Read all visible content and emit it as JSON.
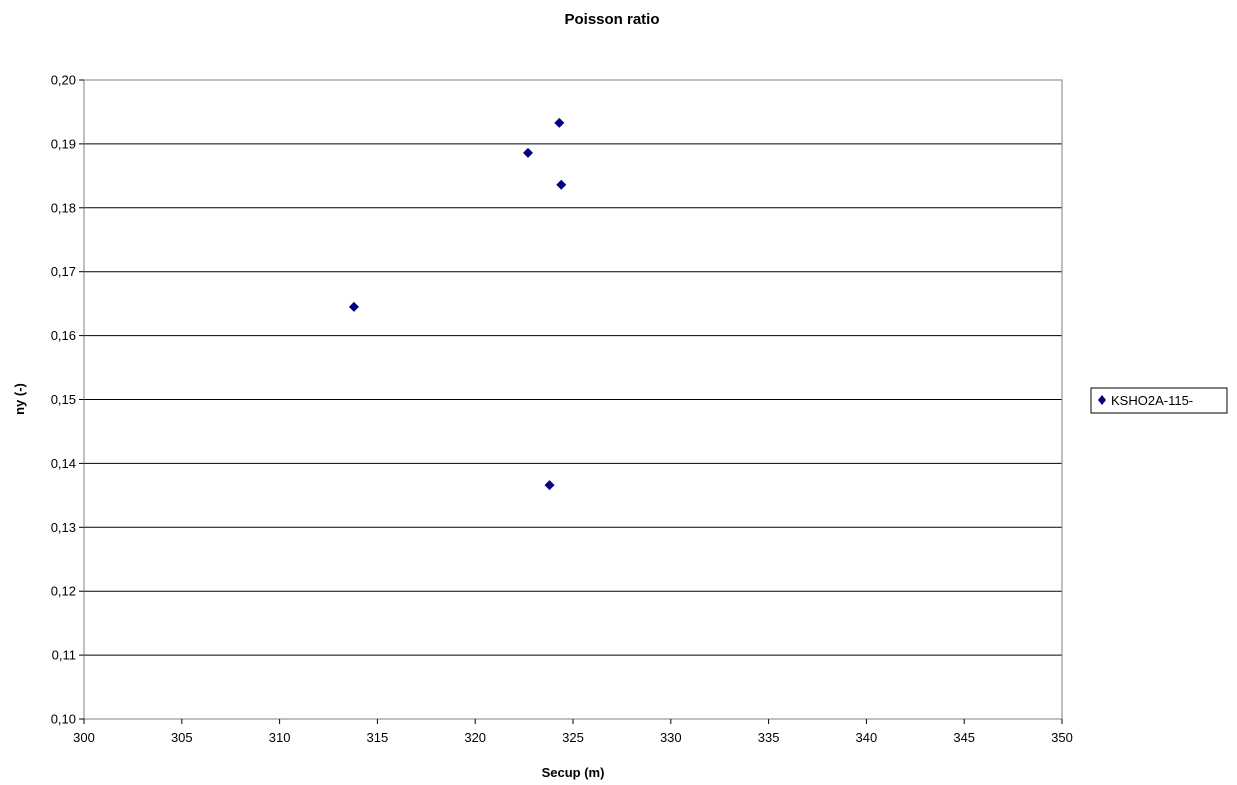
{
  "chart_data": {
    "type": "scatter",
    "title": "Poisson ratio",
    "xlabel": "Secup (m)",
    "ylabel": "ny (-)",
    "xlim": [
      300,
      350
    ],
    "ylim": [
      0.1,
      0.2
    ],
    "x_ticks": [
      "300",
      "305",
      "310",
      "315",
      "320",
      "325",
      "330",
      "335",
      "340",
      "345",
      "350"
    ],
    "y_ticks": [
      "0,10",
      "0,11",
      "0,12",
      "0,13",
      "0,14",
      "0,15",
      "0,16",
      "0,17",
      "0,18",
      "0,19",
      "0,20"
    ],
    "grid": "horizontal",
    "legend_position": "right",
    "marker": "diamond",
    "marker_color": "#000080",
    "series": [
      {
        "name": "KSHO2A-115-",
        "points": [
          {
            "x": 313.8,
            "y": 0.1645
          },
          {
            "x": 322.7,
            "y": 0.1886
          },
          {
            "x": 323.8,
            "y": 0.1366
          },
          {
            "x": 324.3,
            "y": 0.1933
          },
          {
            "x": 324.4,
            "y": 0.1836
          }
        ]
      }
    ]
  }
}
